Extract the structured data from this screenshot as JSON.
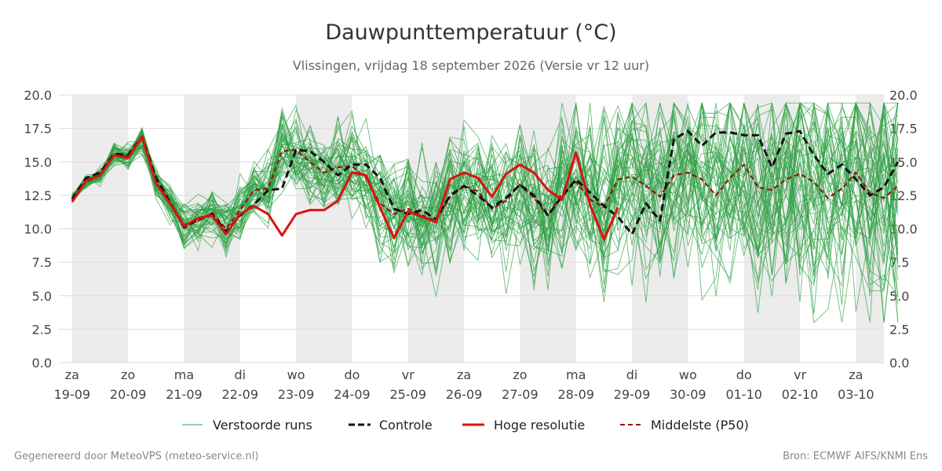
{
  "chart_data": {
    "type": "line",
    "title": "Dauwpunttemperatuur (°C)",
    "subtitle": "Vlissingen, vrijdag 18 september 2026 (Versie vr 12 uur)",
    "ylim": [
      0,
      20
    ],
    "yticks": [
      "0.0",
      "2.5",
      "5.0",
      "7.5",
      "10.0",
      "12.5",
      "15.0",
      "17.5",
      "20.0"
    ],
    "grid": true,
    "xlim": [
      -0.25,
      14.5
    ],
    "day_ticks": [
      {
        "day": "za",
        "date": "19-09"
      },
      {
        "day": "zo",
        "date": "20-09"
      },
      {
        "day": "ma",
        "date": "21-09"
      },
      {
        "day": "di",
        "date": "22-09"
      },
      {
        "day": "wo",
        "date": "23-09"
      },
      {
        "day": "do",
        "date": "24-09"
      },
      {
        "day": "vr",
        "date": "25-09"
      },
      {
        "day": "za",
        "date": "26-09"
      },
      {
        "day": "zo",
        "date": "27-09"
      },
      {
        "day": "ma",
        "date": "28-09"
      },
      {
        "day": "di",
        "date": "29-09"
      },
      {
        "day": "wo",
        "date": "30-09"
      },
      {
        "day": "do",
        "date": "01-10"
      },
      {
        "day": "vr",
        "date": "02-10"
      },
      {
        "day": "za",
        "date": "03-10"
      }
    ],
    "weekend_shading_days": [
      [
        0,
        1
      ],
      [
        2,
        3
      ],
      [
        4,
        5
      ],
      [
        6,
        7
      ],
      [
        8,
        9
      ],
      [
        10,
        11
      ],
      [
        12,
        13
      ],
      [
        14,
        14.5
      ]
    ],
    "legend_placement": "bottom",
    "x_step_days": 0.25,
    "ensemble_member_count": 50,
    "series": [
      {
        "name": "Controle",
        "color": "#111111",
        "style": "dashed",
        "values": [
          12.2,
          13.8,
          14.2,
          15.6,
          15.5,
          16.9,
          13.8,
          12.0,
          10.1,
          10.7,
          11.1,
          9.8,
          11.0,
          11.8,
          12.9,
          13.0,
          15.9,
          15.8,
          15.0,
          14.0,
          14.8,
          14.8,
          13.8,
          11.5,
          11.1,
          11.4,
          10.7,
          12.5,
          13.2,
          12.5,
          11.6,
          12.3,
          13.3,
          12.5,
          11.0,
          12.4,
          13.7,
          12.7,
          11.7,
          10.9,
          9.6,
          11.9,
          10.6,
          16.7,
          17.3,
          16.2,
          17.2,
          17.2,
          17.0,
          17.0,
          14.6,
          17.1,
          17.3,
          15.5,
          14.1,
          14.8,
          13.7,
          12.5,
          13.1,
          15.0
        ]
      },
      {
        "name": "Hoge resolutie",
        "color": "#dd1111",
        "style": "solid",
        "values": [
          12.0,
          13.6,
          14.0,
          15.5,
          15.3,
          16.9,
          13.4,
          11.9,
          10.2,
          10.8,
          11.0,
          9.6,
          11.1,
          11.7,
          11.1,
          9.5,
          11.1,
          11.4,
          11.4,
          12.1,
          14.2,
          14.0,
          11.6,
          9.3,
          11.3,
          10.9,
          10.5,
          13.7,
          14.2,
          13.8,
          12.4,
          14.1,
          14.8,
          14.2,
          12.9,
          12.2,
          15.7,
          11.8,
          9.2,
          11.6
        ]
      },
      {
        "name": "Middelste (P50)",
        "color": "#991111",
        "style": "dashed",
        "values": [
          12.3,
          13.5,
          14.0,
          15.6,
          15.4,
          16.8,
          13.5,
          12.0,
          10.3,
          10.6,
          11.2,
          10.0,
          11.4,
          12.9,
          13.0,
          15.8,
          15.9,
          15.0,
          14.2,
          14.6,
          14.7,
          13.8,
          11.9,
          11.1,
          11.5,
          11.0,
          10.6,
          12.4,
          13.2,
          12.8,
          11.5,
          12.1,
          13.3,
          12.3,
          11.0,
          12.6,
          13.5,
          12.2,
          11.6,
          13.7,
          13.9,
          13.2,
          12.4,
          14.0,
          14.2,
          13.7,
          12.5,
          13.8,
          14.8,
          13.1,
          12.9,
          13.7,
          14.1,
          13.5,
          12.3,
          13.0,
          14.2,
          12.7,
          12.3,
          13.2
        ]
      }
    ]
  },
  "legend": {
    "ensemble": "Verstoorde runs",
    "control": "Controle",
    "hires": "Hoge resolutie",
    "p50": "Middelste (P50)"
  },
  "colors": {
    "ensemble": "#2ea043",
    "control": "#111111",
    "hires": "#dd1111",
    "p50": "#991111",
    "weekend": "#ececec",
    "grid": "#dddddd"
  },
  "footer": {
    "left": "Gegenereerd door MeteoVPS (meteo-service.nl)",
    "right": "Bron: ECMWF AIFS/KNMI Ens"
  }
}
